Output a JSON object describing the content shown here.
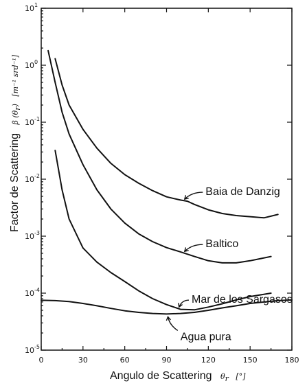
{
  "chart_data": {
    "type": "line",
    "title": "",
    "xlabel": "Angulo de Scattering",
    "xlabel_symbol": "θ",
    "xlabel_subscript": "r",
    "xlabel_unit": "[°]",
    "ylabel": "Factor de Scattering",
    "ylabel_symbol": "β (θ",
    "ylabel_subscript": "r",
    "ylabel_close": ")",
    "ylabel_unit": "[m⁻¹ srd⁻¹]",
    "xlim": [
      0,
      180
    ],
    "ylim_log10": [
      -5,
      1
    ],
    "y_scale": "log",
    "x_ticks": [
      "0",
      "30",
      "60",
      "90",
      "120",
      "150",
      "180"
    ],
    "y_ticks": [
      {
        "base": "10",
        "exp": "1"
      },
      {
        "base": "10",
        "exp": "0"
      },
      {
        "base": "10",
        "exp": "-1"
      },
      {
        "base": "10",
        "exp": "-2"
      },
      {
        "base": "10",
        "exp": "-3"
      },
      {
        "base": "10",
        "exp": "-4"
      },
      {
        "base": "10",
        "exp": "-5"
      }
    ],
    "grid": false,
    "series": [
      {
        "name": "Baia de Danzig",
        "label_angle": 118,
        "pointer_angle": 102,
        "x": [
          10,
          15,
          20,
          30,
          40,
          50,
          60,
          70,
          80,
          90,
          100,
          105,
          110,
          120,
          130,
          140,
          150,
          160,
          170
        ],
        "y": [
          1.3,
          0.45,
          0.2,
          0.075,
          0.035,
          0.019,
          0.012,
          0.0085,
          0.0063,
          0.0049,
          0.0043,
          0.0041,
          0.0036,
          0.0029,
          0.0025,
          0.0023,
          0.0022,
          0.0021,
          0.0024
        ]
      },
      {
        "name": "Baltico",
        "label_angle": 118,
        "pointer_angle": 102,
        "x": [
          5,
          10,
          15,
          20,
          30,
          40,
          50,
          60,
          70,
          80,
          90,
          100,
          110,
          120,
          130,
          140,
          150,
          165
        ],
        "y": [
          1.8,
          0.5,
          0.15,
          0.062,
          0.018,
          0.0065,
          0.003,
          0.0017,
          0.0011,
          0.0008,
          0.00063,
          0.00053,
          0.00044,
          0.00037,
          0.00034,
          0.00034,
          0.00037,
          0.00044
        ]
      },
      {
        "name": "Mar de los Sargasos",
        "label_angle": 108,
        "pointer_angle": 98,
        "x": [
          10,
          15,
          20,
          30,
          40,
          50,
          60,
          70,
          80,
          90,
          100,
          110,
          120,
          130,
          140,
          150,
          165
        ],
        "y": [
          0.032,
          0.0065,
          0.002,
          0.00062,
          0.00035,
          0.00023,
          0.00016,
          0.00011,
          8e-05,
          6.3e-05,
          5.2e-05,
          5.1e-05,
          5.7e-05,
          6.5e-05,
          7.6e-05,
          8.7e-05,
          0.0001
        ]
      },
      {
        "name": "Agua pura",
        "label_angle": 100,
        "pointer_angle": 90,
        "x": [
          0,
          10,
          20,
          30,
          40,
          50,
          60,
          70,
          80,
          90,
          100,
          110,
          120,
          130,
          140,
          150,
          160,
          170,
          180
        ],
        "y": [
          7.5e-05,
          7.4e-05,
          7.1e-05,
          6.6e-05,
          6e-05,
          5.4e-05,
          4.9e-05,
          4.6e-05,
          4.4e-05,
          4.3e-05,
          4.4e-05,
          4.6e-05,
          5e-05,
          5.5e-05,
          6e-05,
          6.6e-05,
          7e-05,
          7.4e-05,
          7.6e-05
        ]
      }
    ]
  }
}
